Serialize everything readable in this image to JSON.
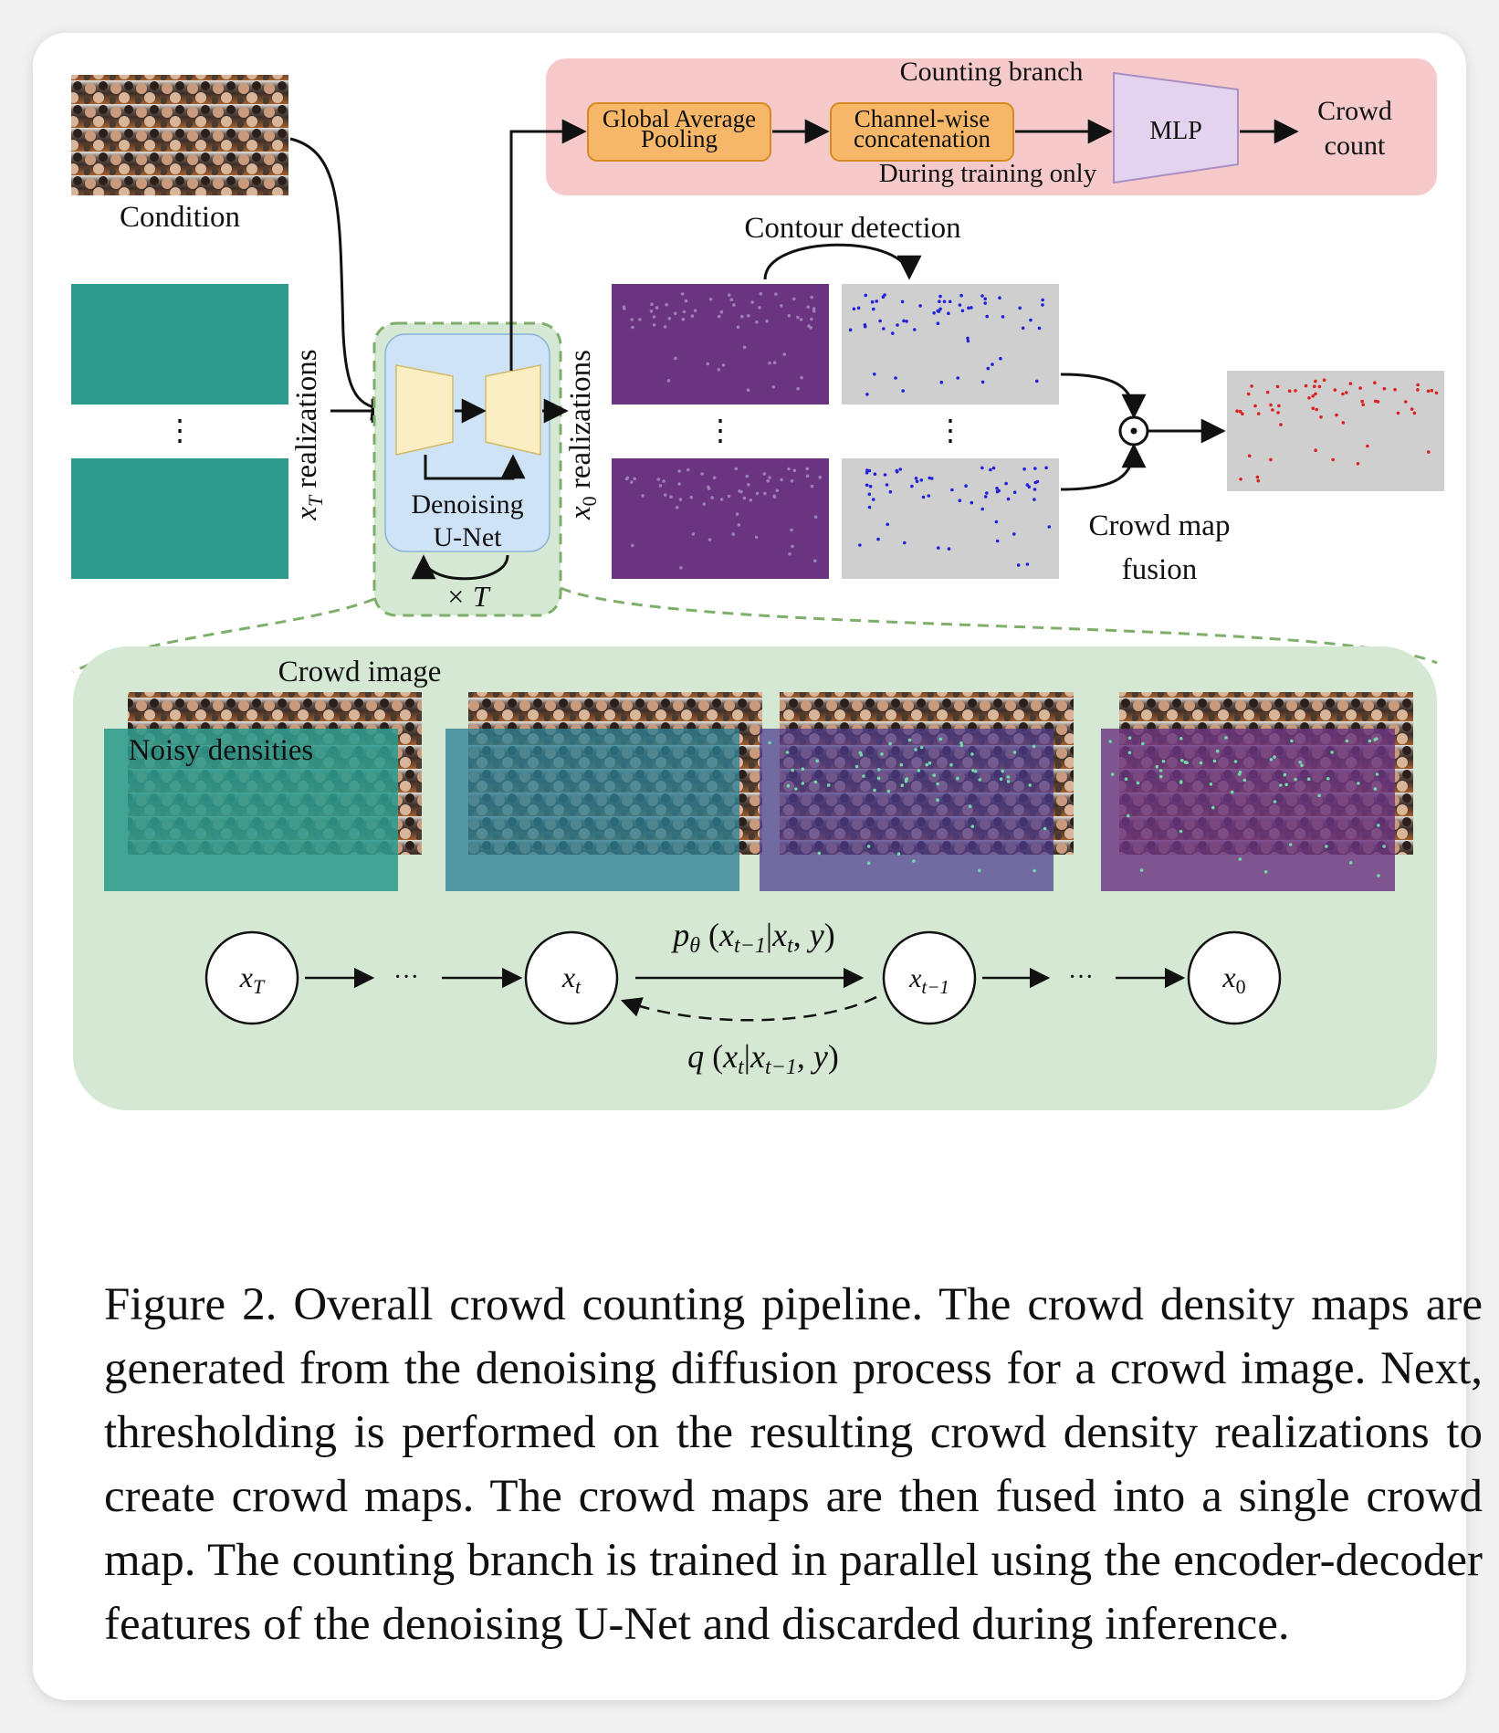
{
  "figure": {
    "counting_branch": {
      "title": "Counting branch",
      "gap_label": [
        "Global Average",
        "Pooling"
      ],
      "concat_label": [
        "Channel-wise",
        "concatenation"
      ],
      "mlp_label": "MLP",
      "training_note": "During training only",
      "output_label": [
        "Crowd",
        "count"
      ],
      "colors": {
        "panel": "#f6c9cb",
        "box": "#f6b868",
        "mlp": "#e3d3ee"
      }
    },
    "condition_label": "Condition",
    "xT_axis_label": "x_T realizations",
    "x0_axis_label": "x_0 realizations",
    "unet": {
      "label": [
        "Denoising",
        "U-Net"
      ],
      "loop_label": "× T"
    },
    "contour_label": "Contour detection",
    "fusion_label": [
      "Crowd map",
      "fusion"
    ],
    "expanded": {
      "crowd_image_label": "Crowd image",
      "noisy_densities_label": "Noisy densities",
      "nodes": [
        "x_T",
        "x_t",
        "x_{t-1}",
        "x_0"
      ],
      "forward_label": "p_θ(x_{t−1}|x_t, y)",
      "reverse_label": "q(x_t|x_{t−1}, y)",
      "ellipsis": "···"
    },
    "colors": {
      "noise_teal": "#2e9a8c",
      "density_purple": "#6a3480",
      "map_gray": "#cfcfcf",
      "dots_blue": "#2222dd",
      "dots_red": "#dd2222",
      "unet_blue": "#cfe3f6",
      "green_panel": "#d5e8d4",
      "green_border": "#7fae6b",
      "unet_block": "#fbeec3"
    }
  },
  "caption": "Figure 2.  Overall crowd counting pipeline.  The crowd density maps are generated from the denoising diffusion process for a crowd image.  Next, thresholding is performed on the resulting crowd density realizations to create crowd maps. The crowd maps are then fused into a single crowd map.  The counting branch is trained in parallel using the encoder-decoder features of the denoising U-Net and discarded during inference."
}
